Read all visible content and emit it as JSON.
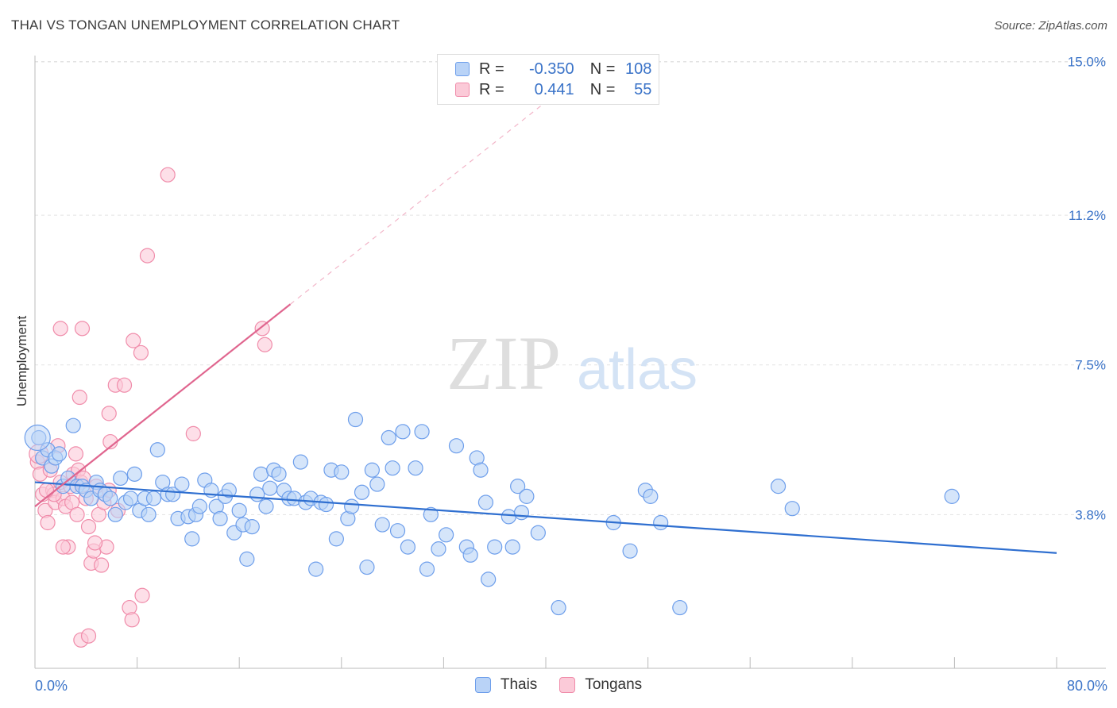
{
  "title": "THAI VS TONGAN UNEMPLOYMENT CORRELATION CHART",
  "source": "Source: ZipAtlas.com",
  "watermark": {
    "zip": "ZIP",
    "atlas": "atlas"
  },
  "legend": {
    "rows": [
      {
        "r_label": "R =",
        "r_value": "-0.350",
        "n_label": "N =",
        "n_value": "108",
        "color": "#6d9eeb"
      },
      {
        "r_label": "R =",
        "r_value": "0.441",
        "n_label": "N =",
        "n_value": "55",
        "color": "#f08caa"
      }
    ]
  },
  "bottom_legend": [
    {
      "name": "Thais",
      "fill": "#b9d3f7",
      "stroke": "#6d9eeb"
    },
    {
      "name": "Tongans",
      "fill": "#fbcad8",
      "stroke": "#f08caa"
    }
  ],
  "chart_data": {
    "type": "scatter",
    "title": "THAI VS TONGAN UNEMPLOYMENT CORRELATION CHART",
    "xlabel": "",
    "ylabel": "Unemployment",
    "xlim": [
      0,
      80
    ],
    "ylim": [
      0,
      15.5
    ],
    "x_tick_labels": [
      {
        "value": 0,
        "label": "0.0%"
      },
      {
        "value": 80,
        "label": "80.0%"
      }
    ],
    "y_tick_labels": [
      {
        "value": 3.8,
        "label": "3.8%"
      },
      {
        "value": 7.5,
        "label": "7.5%"
      },
      {
        "value": 11.2,
        "label": "11.2%"
      },
      {
        "value": 15.0,
        "label": "15.0%"
      }
    ],
    "grid": true,
    "series": [
      {
        "name": "Thais",
        "color": "#6d9eeb",
        "fill": "#b9d3f7",
        "trend": {
          "x0": 0,
          "y0": 4.6,
          "x1": 80,
          "y1": 2.85,
          "color": "#2f6fd0"
        },
        "points": [
          [
            0.3,
            5.7
          ],
          [
            0.6,
            5.2
          ],
          [
            1.0,
            5.4
          ],
          [
            1.3,
            5.0
          ],
          [
            1.6,
            5.2
          ],
          [
            1.9,
            5.3
          ],
          [
            2.2,
            4.5
          ],
          [
            2.6,
            4.7
          ],
          [
            3.0,
            6.0
          ],
          [
            3.3,
            4.5
          ],
          [
            3.7,
            4.5
          ],
          [
            4.0,
            4.4
          ],
          [
            4.4,
            4.2
          ],
          [
            4.8,
            4.6
          ],
          [
            5.1,
            4.4
          ],
          [
            5.5,
            4.3
          ],
          [
            5.9,
            4.2
          ],
          [
            6.3,
            3.8
          ],
          [
            6.7,
            4.7
          ],
          [
            7.1,
            4.1
          ],
          [
            7.5,
            4.2
          ],
          [
            7.8,
            4.8
          ],
          [
            8.2,
            3.9
          ],
          [
            8.6,
            4.2
          ],
          [
            8.9,
            3.8
          ],
          [
            9.3,
            4.2
          ],
          [
            9.6,
            5.4
          ],
          [
            10.0,
            4.6
          ],
          [
            10.4,
            4.3
          ],
          [
            10.8,
            4.3
          ],
          [
            11.2,
            3.7
          ],
          [
            11.5,
            4.55
          ],
          [
            12.0,
            3.75
          ],
          [
            12.3,
            3.2
          ],
          [
            12.6,
            3.8
          ],
          [
            12.9,
            4.0
          ],
          [
            13.3,
            4.65
          ],
          [
            13.8,
            4.4
          ],
          [
            14.2,
            4.0
          ],
          [
            14.5,
            3.7
          ],
          [
            14.9,
            4.25
          ],
          [
            15.2,
            4.4
          ],
          [
            15.6,
            3.35
          ],
          [
            16.0,
            3.9
          ],
          [
            16.3,
            3.55
          ],
          [
            16.6,
            2.7
          ],
          [
            17.0,
            3.5
          ],
          [
            17.4,
            4.3
          ],
          [
            17.7,
            4.8
          ],
          [
            18.1,
            4.0
          ],
          [
            18.4,
            4.45
          ],
          [
            18.7,
            4.9
          ],
          [
            19.1,
            4.8
          ],
          [
            19.5,
            4.4
          ],
          [
            19.9,
            4.2
          ],
          [
            20.3,
            4.2
          ],
          [
            20.8,
            5.1
          ],
          [
            21.2,
            4.1
          ],
          [
            21.6,
            4.2
          ],
          [
            22.0,
            2.45
          ],
          [
            22.4,
            4.1
          ],
          [
            22.8,
            4.05
          ],
          [
            23.2,
            4.9
          ],
          [
            23.6,
            3.2
          ],
          [
            24.0,
            4.85
          ],
          [
            24.5,
            3.7
          ],
          [
            24.8,
            4.0
          ],
          [
            25.1,
            6.15
          ],
          [
            25.6,
            4.35
          ],
          [
            26.0,
            2.5
          ],
          [
            26.4,
            4.9
          ],
          [
            26.8,
            4.55
          ],
          [
            27.2,
            3.55
          ],
          [
            27.7,
            5.7
          ],
          [
            28.0,
            4.95
          ],
          [
            28.4,
            3.4
          ],
          [
            28.8,
            5.85
          ],
          [
            29.2,
            3.0
          ],
          [
            29.8,
            4.95
          ],
          [
            30.3,
            5.85
          ],
          [
            30.7,
            2.45
          ],
          [
            31.0,
            3.8
          ],
          [
            31.6,
            2.95
          ],
          [
            32.2,
            3.3
          ],
          [
            33.0,
            5.5
          ],
          [
            33.8,
            3.0
          ],
          [
            34.1,
            2.8
          ],
          [
            34.6,
            5.2
          ],
          [
            34.9,
            4.9
          ],
          [
            35.3,
            4.1
          ],
          [
            35.5,
            2.2
          ],
          [
            36.0,
            3.0
          ],
          [
            37.1,
            3.75
          ],
          [
            37.4,
            3.0
          ],
          [
            37.8,
            4.5
          ],
          [
            38.1,
            3.85
          ],
          [
            38.5,
            4.25
          ],
          [
            39.4,
            3.35
          ],
          [
            41.0,
            1.5
          ],
          [
            45.3,
            3.6
          ],
          [
            46.6,
            2.9
          ],
          [
            47.8,
            4.4
          ],
          [
            48.2,
            4.25
          ],
          [
            49.0,
            3.6
          ],
          [
            50.5,
            1.5
          ],
          [
            58.2,
            4.5
          ],
          [
            59.3,
            3.95
          ],
          [
            71.8,
            4.25
          ]
        ]
      },
      {
        "name": "Tongans",
        "color": "#f08caa",
        "fill": "#fbcad8",
        "trend": {
          "x0": 0,
          "y0": 4.0,
          "x1": 20,
          "y1": 9.0,
          "color": "#e0668f",
          "dash_to": {
            "x": 40,
            "y": 14.0
          }
        },
        "points": [
          [
            0.2,
            5.1
          ],
          [
            0.4,
            4.8
          ],
          [
            0.6,
            4.3
          ],
          [
            0.8,
            3.9
          ],
          [
            1.0,
            3.6
          ],
          [
            1.2,
            4.9
          ],
          [
            1.4,
            4.4
          ],
          [
            1.6,
            4.1
          ],
          [
            1.8,
            5.5
          ],
          [
            2.0,
            4.6
          ],
          [
            2.2,
            4.2
          ],
          [
            2.4,
            4.0
          ],
          [
            2.6,
            3.0
          ],
          [
            2.8,
            4.5
          ],
          [
            3.0,
            4.8
          ],
          [
            3.2,
            5.3
          ],
          [
            3.4,
            4.9
          ],
          [
            3.6,
            4.6
          ],
          [
            3.8,
            4.7
          ],
          [
            4.0,
            4.2
          ],
          [
            4.2,
            3.5
          ],
          [
            4.4,
            2.6
          ],
          [
            4.6,
            2.9
          ],
          [
            4.8,
            4.5
          ],
          [
            5.0,
            3.8
          ],
          [
            5.2,
            2.55
          ],
          [
            5.4,
            4.1
          ],
          [
            5.6,
            3.0
          ],
          [
            5.8,
            4.4
          ],
          [
            2.0,
            8.4
          ],
          [
            3.7,
            8.4
          ],
          [
            3.5,
            6.7
          ],
          [
            4.7,
            3.1
          ],
          [
            5.8,
            6.3
          ],
          [
            5.9,
            5.6
          ],
          [
            6.3,
            7.0
          ],
          [
            6.5,
            3.9
          ],
          [
            7.0,
            7.0
          ],
          [
            7.4,
            1.5
          ],
          [
            7.6,
            1.2
          ],
          [
            7.7,
            8.1
          ],
          [
            8.3,
            7.8
          ],
          [
            8.4,
            1.8
          ],
          [
            8.8,
            10.2
          ],
          [
            10.4,
            12.2
          ],
          [
            12.4,
            5.8
          ],
          [
            17.8,
            8.4
          ],
          [
            18.0,
            8.0
          ],
          [
            3.6,
            0.7
          ],
          [
            4.2,
            0.8
          ],
          [
            2.2,
            3.0
          ],
          [
            1.5,
            4.3
          ],
          [
            0.9,
            4.4
          ],
          [
            2.9,
            4.1
          ],
          [
            3.3,
            3.8
          ]
        ]
      }
    ]
  }
}
